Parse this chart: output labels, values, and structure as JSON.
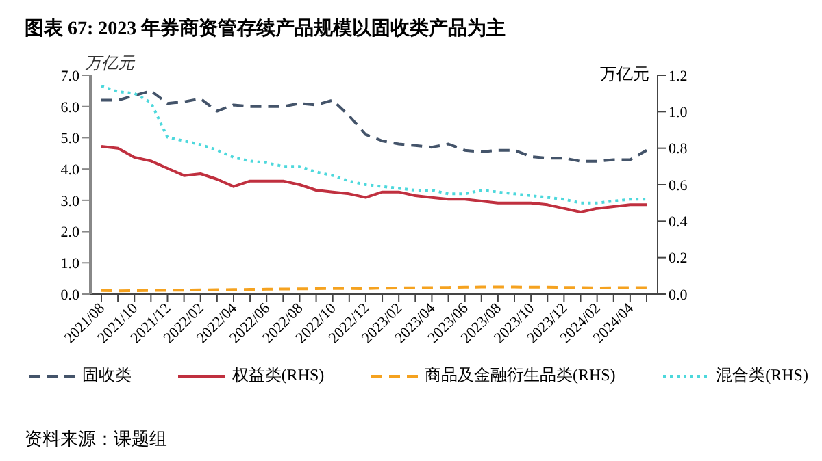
{
  "chart_data": {
    "type": "line",
    "title": "图表 67: 2023 年券商资管存续产品规模以固收类产品为主",
    "ylabel": "万亿元",
    "y2label": "万亿元",
    "categories": [
      "2021/08",
      null,
      "2021/10",
      null,
      "2021/12",
      null,
      "2022/02",
      null,
      "2022/04",
      null,
      "2022/06",
      null,
      "2022/08",
      null,
      "2022/10",
      null,
      "2022/12",
      null,
      "2023/02",
      null,
      "2023/04",
      null,
      "2023/06",
      null,
      "2023/08",
      null,
      "2023/10",
      null,
      "2023/12",
      null,
      "2024/02",
      null,
      "2024/04",
      null
    ],
    "series": [
      {
        "name": "固收类",
        "color": "#44546a",
        "line_style": "dashed",
        "values": [
          6.2,
          6.2,
          6.35,
          6.5,
          6.1,
          6.15,
          6.25,
          5.85,
          6.05,
          6.0,
          6.0,
          6.0,
          6.1,
          6.05,
          6.2,
          5.7,
          5.1,
          4.9,
          4.8,
          4.75,
          4.7,
          4.8,
          4.6,
          4.55,
          4.6,
          4.6,
          4.4,
          4.35,
          4.35,
          4.25,
          4.25,
          4.3,
          4.3,
          4.6
        ]
      },
      {
        "name": "权益类(RHS)",
        "color": "#c0303f",
        "line_style": "solid",
        "axis": "y2",
        "values": [
          0.81,
          0.8,
          0.75,
          0.73,
          0.69,
          0.65,
          0.66,
          0.63,
          0.59,
          0.62,
          0.62,
          0.62,
          0.6,
          0.57,
          0.56,
          0.55,
          0.53,
          0.56,
          0.56,
          0.54,
          0.53,
          0.52,
          0.52,
          0.51,
          0.5,
          0.5,
          0.5,
          0.49,
          0.47,
          0.45,
          0.47,
          0.48,
          0.49,
          0.49
        ]
      },
      {
        "name": "商品及金融衍生品类(RHS)",
        "color": "#f5a21f",
        "line_style": "dashed",
        "axis": "y2",
        "values": [
          0.02,
          0.018,
          0.019,
          0.02,
          0.021,
          0.022,
          0.023,
          0.024,
          0.025,
          0.026,
          0.027,
          0.028,
          0.029,
          0.03,
          0.031,
          0.031,
          0.03,
          0.033,
          0.034,
          0.035,
          0.036,
          0.037,
          0.038,
          0.039,
          0.039,
          0.039,
          0.038,
          0.038,
          0.037,
          0.036,
          0.034,
          0.035,
          0.036,
          0.036
        ]
      },
      {
        "name": "混合类(RHS)",
        "color": "#4dd8dc",
        "line_style": "dotted",
        "axis": "y2",
        "values": [
          1.14,
          1.11,
          1.1,
          1.05,
          0.86,
          0.84,
          0.82,
          0.79,
          0.75,
          0.73,
          0.72,
          0.7,
          0.7,
          0.67,
          0.65,
          0.62,
          0.6,
          0.59,
          0.58,
          0.57,
          0.57,
          0.55,
          0.55,
          0.57,
          0.56,
          0.55,
          0.54,
          0.53,
          0.52,
          0.5,
          0.5,
          0.51,
          0.52,
          0.52
        ]
      }
    ],
    "ylim": [
      0,
      7
    ],
    "yticks": [
      {
        "value": 0,
        "label": "0.0"
      },
      {
        "value": 1,
        "label": "1.0"
      },
      {
        "value": 2,
        "label": "2.0"
      },
      {
        "value": 3,
        "label": "3.0"
      },
      {
        "value": 4,
        "label": "4.0"
      },
      {
        "value": 5,
        "label": "5.0"
      },
      {
        "value": 6,
        "label": "6.0"
      },
      {
        "value": 7,
        "label": "7.0"
      }
    ],
    "y2lim": [
      0,
      1.2
    ],
    "y2ticks": [
      {
        "value": 0,
        "label": "0.0"
      },
      {
        "value": 0.2,
        "label": "0.2"
      },
      {
        "value": 0.4,
        "label": "0.4"
      },
      {
        "value": 0.6,
        "label": "0.6"
      },
      {
        "value": 0.8,
        "label": "0.8"
      },
      {
        "value": 1,
        "label": "1.0"
      },
      {
        "value": 1.2,
        "label": "1.2"
      }
    ],
    "grid": false,
    "legend": "bottom",
    "marker": "none",
    "annotations": [
      "资料来源：课题组"
    ]
  }
}
